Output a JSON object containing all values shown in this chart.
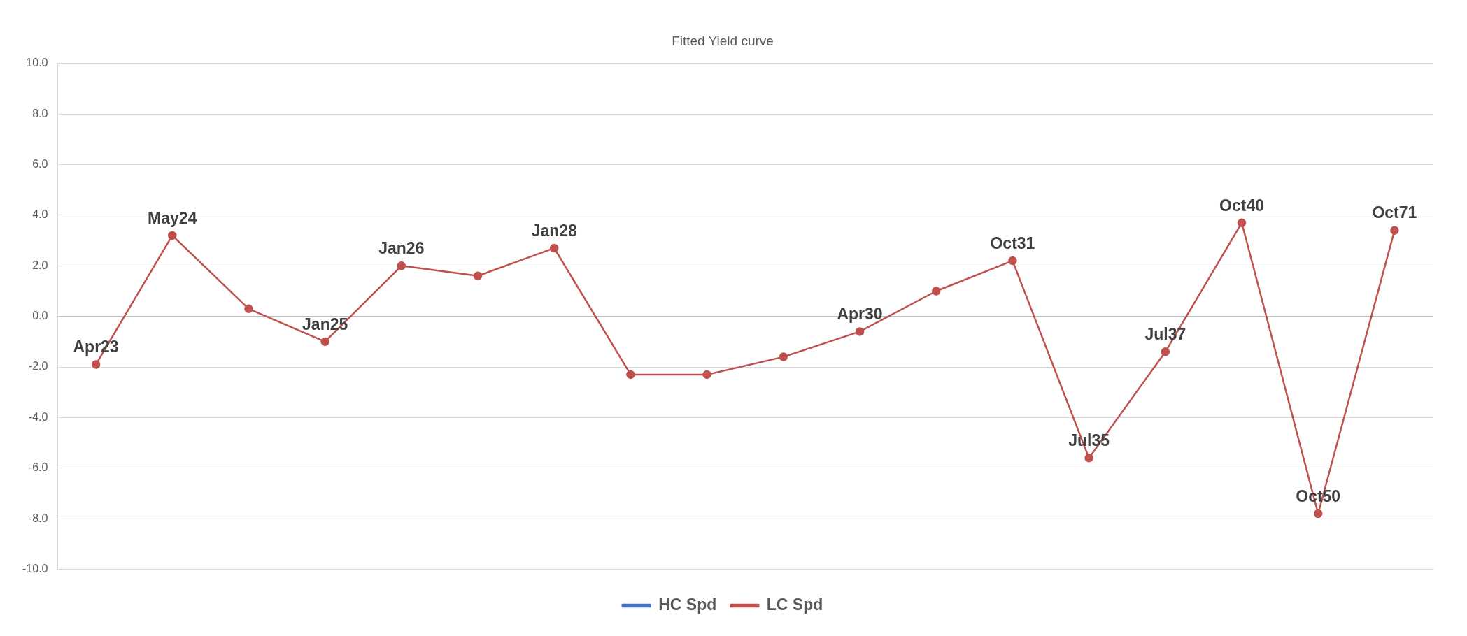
{
  "chart_data": {
    "type": "line",
    "title": "Fitted Yield curve",
    "categories": [
      null,
      null,
      null,
      null,
      null,
      null,
      null,
      null,
      null,
      null,
      null,
      null,
      null,
      null,
      null,
      null,
      null,
      null
    ],
    "series": [
      {
        "name": "HC Spd",
        "color": "#4472c4",
        "values": [
          null,
          null,
          null,
          null,
          null,
          null,
          null,
          null,
          null,
          null,
          null,
          null,
          null,
          null,
          null,
          null,
          null,
          null
        ]
      },
      {
        "name": "LC Spd",
        "color": "#c0504d",
        "values": [
          -1.9,
          3.2,
          0.3,
          -1.0,
          2.0,
          1.6,
          2.7,
          -2.3,
          -2.3,
          -1.6,
          -0.6,
          1.0,
          2.2,
          -5.6,
          -1.4,
          3.7,
          -7.8,
          3.4
        ],
        "value_labels": [
          "Apr23",
          "May24",
          null,
          "Jan25",
          "Jan26",
          null,
          "Jan28",
          null,
          null,
          null,
          "Apr30",
          null,
          "Oct31",
          "Jul35",
          "Jul37",
          "Oct40",
          "Oct50",
          "Oct71"
        ]
      }
    ],
    "ylim": [
      -10,
      10
    ],
    "yticks": [
      {
        "value": -10,
        "label": "-10.0"
      },
      {
        "value": -8,
        "label": "-8.0"
      },
      {
        "value": -6,
        "label": "-6.0"
      },
      {
        "value": -4,
        "label": "-4.0"
      },
      {
        "value": -2,
        "label": "-2.0"
      },
      {
        "value": 0,
        "label": "0.0"
      },
      {
        "value": 2,
        "label": "2.0"
      },
      {
        "value": 4,
        "label": "4.0"
      },
      {
        "value": 6,
        "label": "6.0"
      },
      {
        "value": 8,
        "label": "8.0"
      },
      {
        "value": 10,
        "label": "10.0"
      }
    ],
    "grid": "y",
    "legend": "bottom",
    "marker": "circle",
    "line_style": "solid"
  }
}
